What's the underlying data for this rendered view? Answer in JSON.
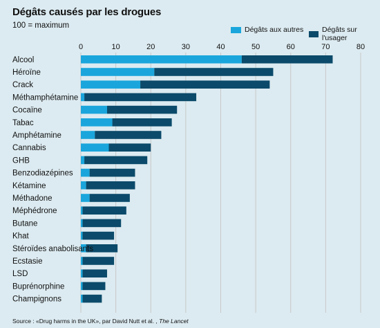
{
  "title": "Dégâts causés par les drogues",
  "subtitle": "100 = maximum",
  "legend": {
    "others": "Dégâts aux autres",
    "user": "Dégâts sur l'usager"
  },
  "colors": {
    "others": "#1aa6dc",
    "user": "#0b4a6a",
    "background": "#dcebf1",
    "grid": "#c7c7c7"
  },
  "source": {
    "prefix": "Source : «Drug harms in the UK», par David Nutt et al. ,",
    "journal": "The Lancet"
  },
  "chart_data": {
    "type": "bar",
    "orientation": "horizontal",
    "stacked": true,
    "title": "Dégâts causés par les drogues",
    "subtitle": "100 = maximum",
    "xlim": [
      0,
      80
    ],
    "xticks": [
      0,
      10,
      20,
      30,
      40,
      50,
      60,
      70,
      80
    ],
    "grid": true,
    "legend_position": "top-right",
    "categories": [
      "Alcool",
      "Héroïne",
      "Crack",
      "Méthamphétamine",
      "Cocaïne",
      "Tabac",
      "Amphétamine",
      "Cannabis",
      "GHB",
      "Benzodiazépines",
      "Kétamine",
      "Méthadone",
      "Méphédrone",
      "Butane",
      "Khat",
      "Stéroïdes anabolisants",
      "Ecstasie",
      "LSD",
      "Buprénorphine",
      "Champignons"
    ],
    "series": [
      {
        "name": "Dégâts aux autres",
        "values": [
          46,
          21,
          17,
          1,
          7.5,
          9,
          4,
          8,
          1,
          2.5,
          1.5,
          2.5,
          0.5,
          0.5,
          0.5,
          1.5,
          0.5,
          0.5,
          0.5,
          0.5
        ]
      },
      {
        "name": "Dégâts sur l'usager",
        "values": [
          26,
          34,
          37,
          32,
          20,
          17,
          19,
          12,
          18,
          13,
          14,
          11.5,
          12.5,
          11,
          9,
          9,
          9,
          7,
          6.5,
          5.5
        ]
      }
    ]
  }
}
